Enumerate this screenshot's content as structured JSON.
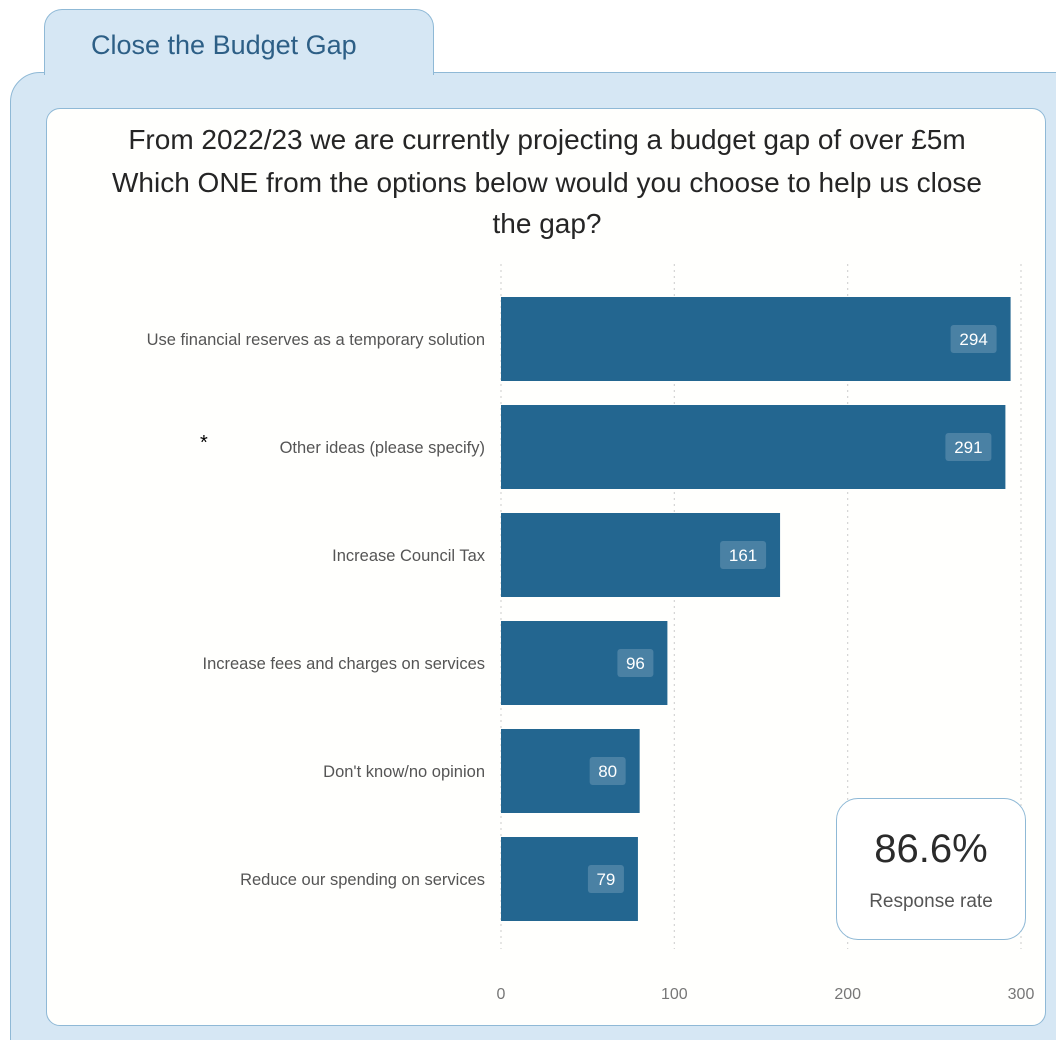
{
  "tab": {
    "label": "Close the Budget Gap"
  },
  "chart_data": {
    "type": "bar",
    "orientation": "horizontal",
    "title_lines": [
      "From 2022/23 we are currently projecting a budget gap of over £5m",
      "Which ONE from the options below would you choose to help us close",
      "the gap?"
    ],
    "categories": [
      "Use financial reserves as a temporary solution",
      "Other ideas (please specify)",
      "Increase Council Tax",
      "Increase fees and charges on services",
      "Don't know/no opinion",
      "Reduce our spending on services"
    ],
    "values": [
      294,
      291,
      161,
      96,
      80,
      79
    ],
    "xlim": [
      0,
      300
    ],
    "xticks": [
      0,
      100,
      200,
      300
    ],
    "grid": "vertical-dotted",
    "bar_color": "#236690",
    "data_labels": true
  },
  "kpi": {
    "value": "86.6%",
    "label": "Response rate"
  },
  "annotation": {
    "text": "*"
  }
}
